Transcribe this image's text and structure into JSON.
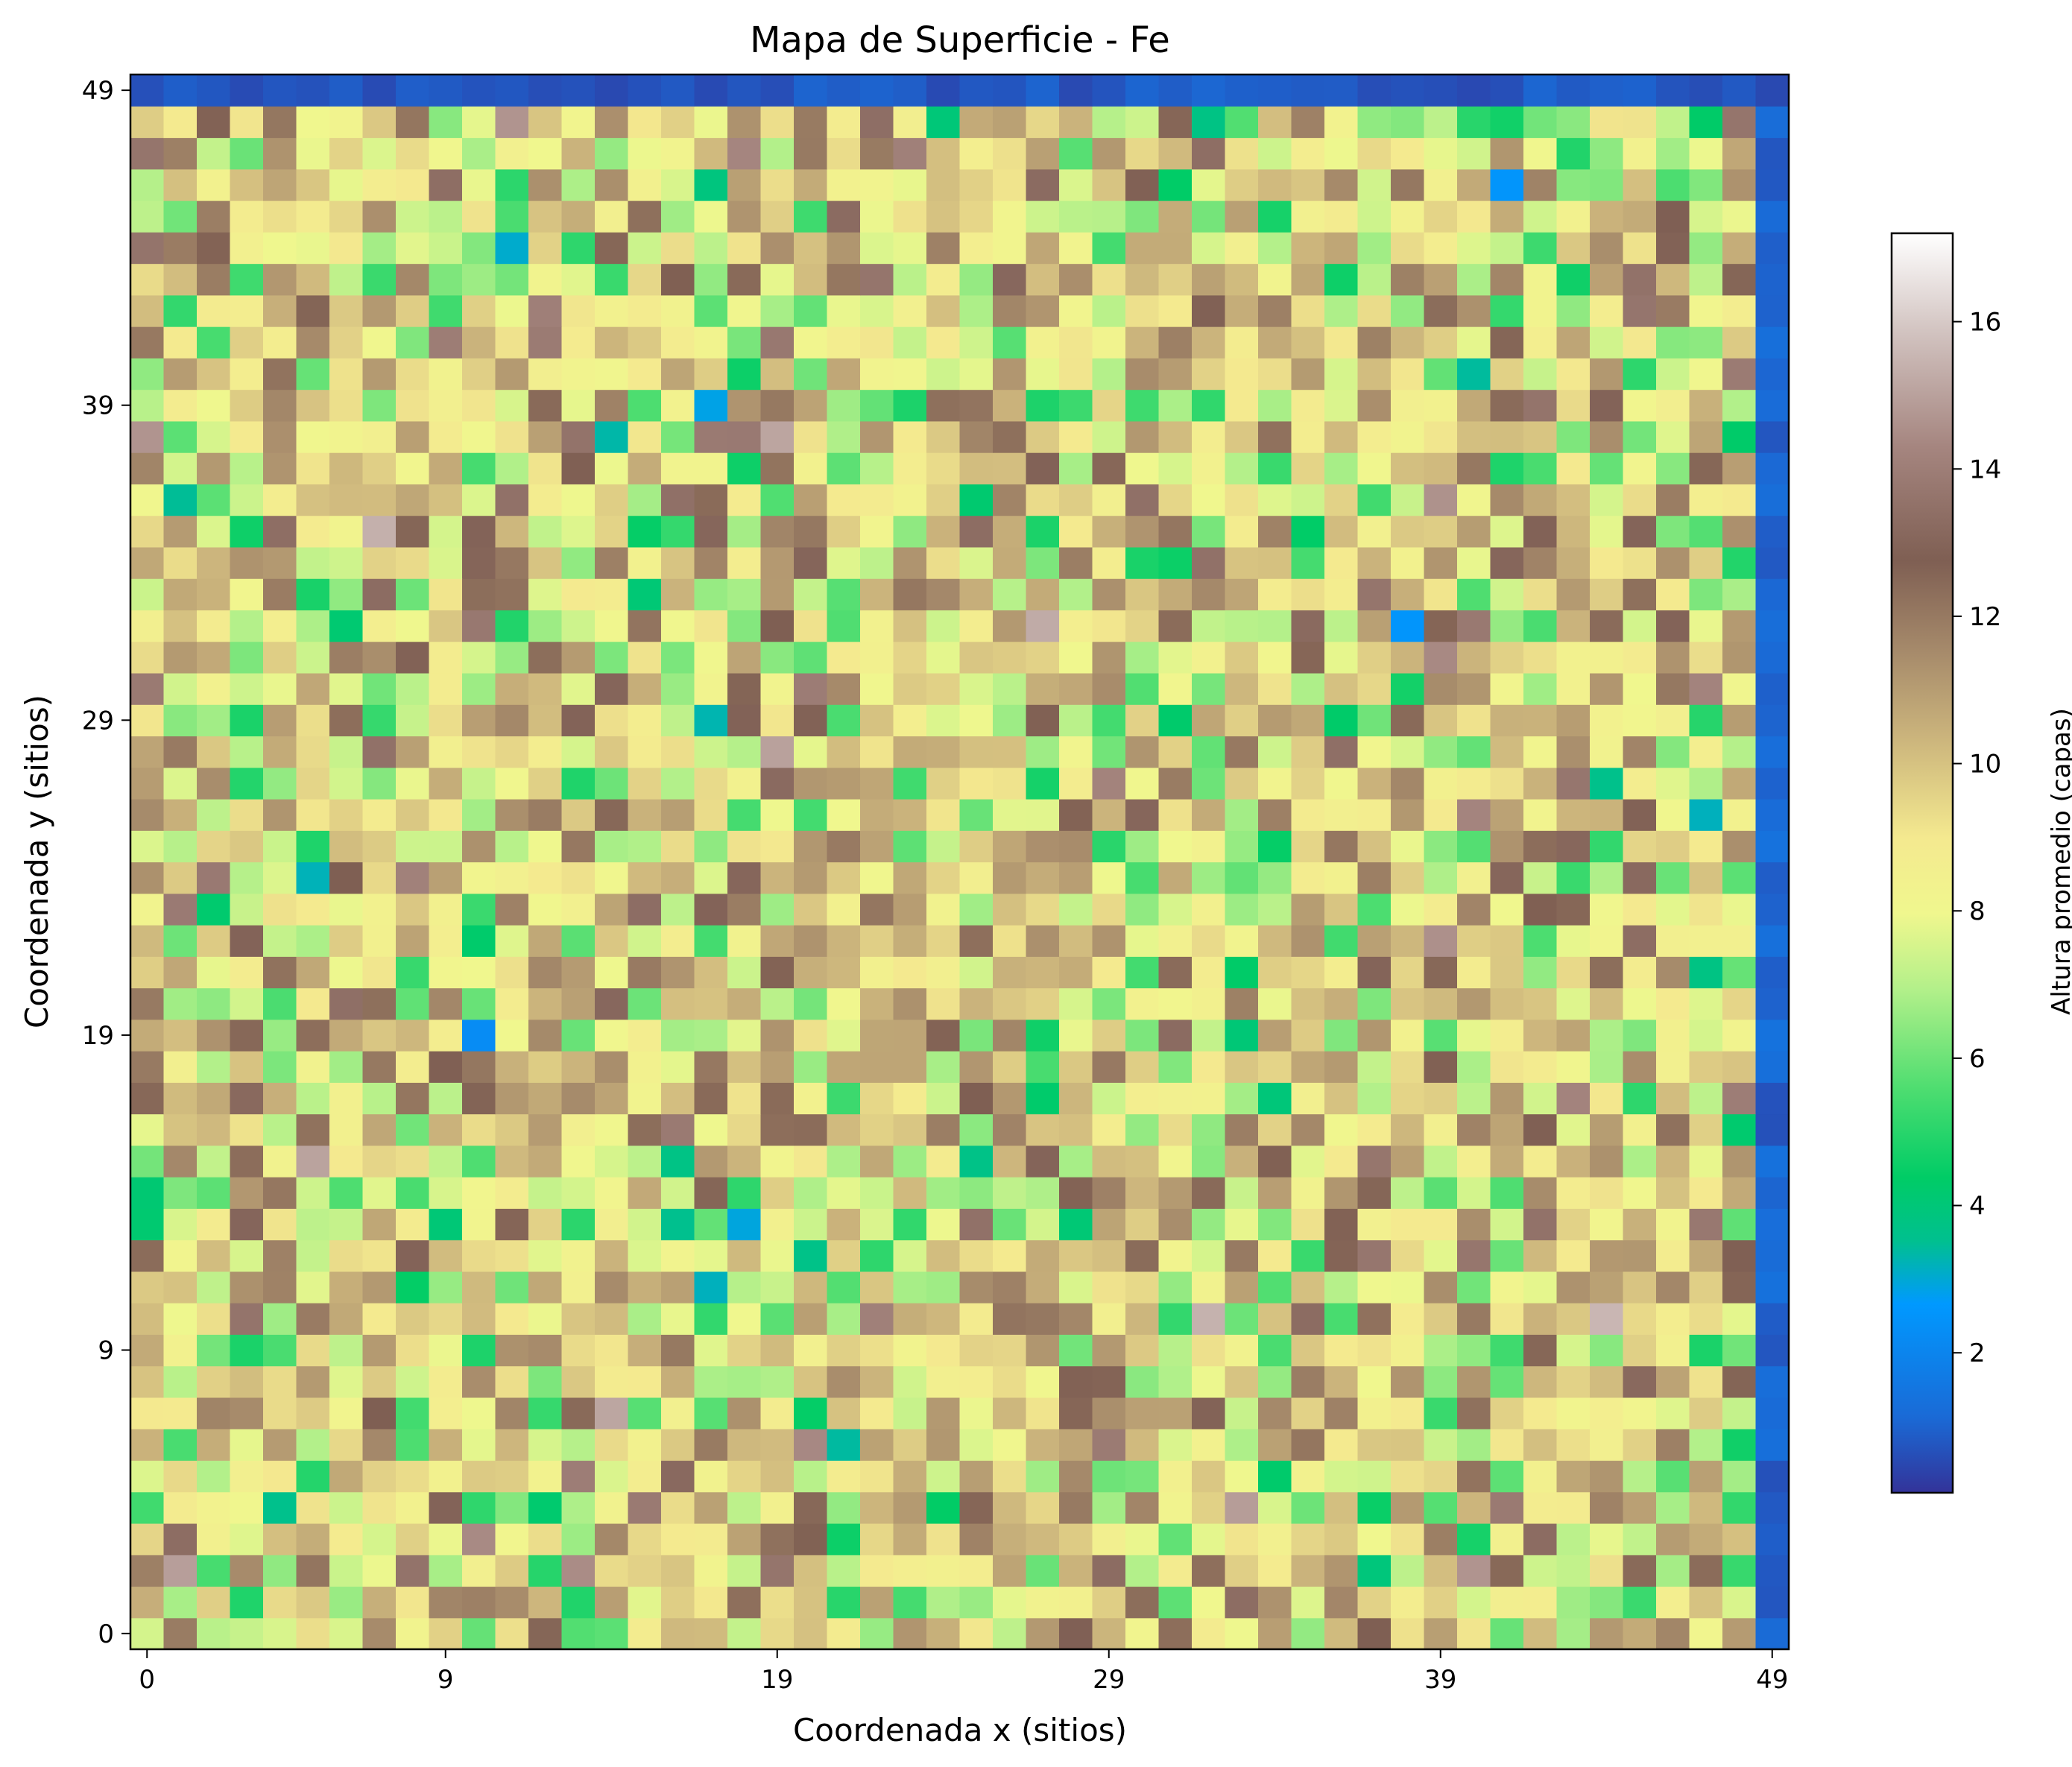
{
  "chart_data": {
    "type": "heatmap",
    "title": "Mapa de Superficie - Fe",
    "xlabel": "Coordenada x (sitios)",
    "ylabel": "Coordenada y (sitios)",
    "colorbar_label": "Altura promedio (capas)",
    "colormap": "terrain",
    "grid_size": [
      50,
      50
    ],
    "x_ticks": [
      "0",
      "9",
      "19",
      "29",
      "39",
      "49"
    ],
    "y_ticks": [
      "0",
      "9",
      "19",
      "29",
      "39",
      "49"
    ],
    "colorbar_ticks": [
      "2",
      "4",
      "6",
      "8",
      "10",
      "12",
      "14",
      "16"
    ],
    "value_range": [
      0.1,
      17.2
    ],
    "boundary_values": {
      "top_row": 0.8,
      "right_column": 1.0
    },
    "notes_visible": "Interior cells vary roughly between 1 and 17; mean about 9"
  }
}
